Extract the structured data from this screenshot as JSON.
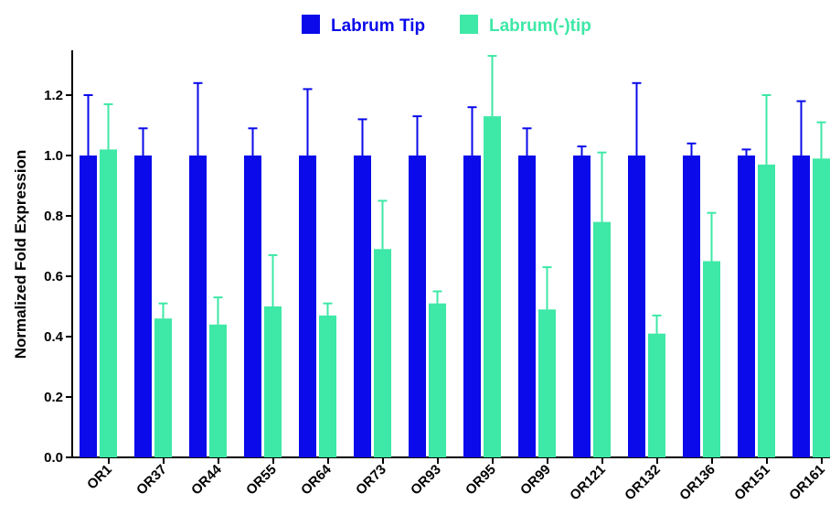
{
  "chart_data": {
    "type": "bar",
    "title": "",
    "xlabel": "",
    "ylabel": "Normalized Fold Expression",
    "ylim": [
      0,
      1.35
    ],
    "yticks": [
      "0.0",
      "0.2",
      "0.4",
      "0.6",
      "0.8",
      "1.0",
      "1.2"
    ],
    "legend_position": "top-center",
    "grid": false,
    "categories": [
      "OR1",
      "OR37",
      "OR44",
      "OR55",
      "OR64",
      "OR73",
      "OR93",
      "OR95",
      "OR99",
      "OR121",
      "OR132",
      "OR136",
      "OR151",
      "OR161"
    ],
    "series": [
      {
        "name": "Labrum Tip",
        "color": "#0a0aea",
        "values": [
          1.0,
          1.0,
          1.0,
          1.0,
          1.0,
          1.0,
          1.0,
          1.0,
          1.0,
          1.0,
          1.0,
          1.0,
          1.0,
          1.0
        ],
        "error_upper": [
          1.2,
          1.09,
          1.24,
          1.09,
          1.22,
          1.12,
          1.13,
          1.16,
          1.09,
          1.03,
          1.24,
          1.04,
          1.02,
          1.18
        ]
      },
      {
        "name": "Labrum(-)tip",
        "color": "#3ee8a6",
        "values": [
          1.02,
          0.46,
          0.44,
          0.5,
          0.47,
          0.69,
          0.51,
          1.13,
          0.49,
          0.78,
          0.41,
          0.65,
          0.97,
          0.99
        ],
        "error_upper": [
          1.17,
          0.51,
          0.53,
          0.67,
          0.51,
          0.85,
          0.55,
          1.33,
          0.63,
          1.01,
          0.47,
          0.81,
          1.2,
          1.11
        ]
      }
    ]
  }
}
